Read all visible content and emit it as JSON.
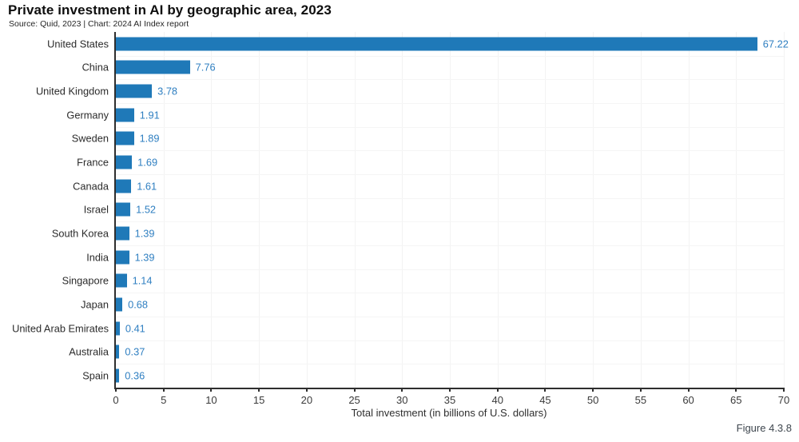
{
  "chart_data": {
    "type": "bar",
    "orientation": "horizontal",
    "title": "Private investment in AI by geographic area, 2023",
    "source": "Source: Quid, 2023 | Chart: 2024 AI Index report",
    "categories": [
      "United States",
      "China",
      "United Kingdom",
      "Germany",
      "Sweden",
      "France",
      "Canada",
      "Israel",
      "South Korea",
      "India",
      "Singapore",
      "Japan",
      "United Arab Emirates",
      "Australia",
      "Spain"
    ],
    "values": [
      67.22,
      7.76,
      3.78,
      1.91,
      1.89,
      1.69,
      1.61,
      1.52,
      1.39,
      1.39,
      1.14,
      0.68,
      0.41,
      0.37,
      0.36
    ],
    "value_labels": [
      "67.22",
      "7.76",
      "3.78",
      "1.91",
      "1.89",
      "1.69",
      "1.61",
      "1.52",
      "1.39",
      "1.39",
      "1.14",
      "0.68",
      "0.41",
      "0.37",
      "0.36"
    ],
    "xlabel": "Total investment (in billions of U.S. dollars)",
    "xlim": [
      0,
      70
    ],
    "xticks": [
      0,
      5,
      10,
      15,
      20,
      25,
      30,
      35,
      40,
      45,
      50,
      55,
      60,
      65,
      70
    ],
    "grid": true,
    "legend": "none",
    "figure_label": "Figure 4.3.8",
    "bar_color": "#1f79b8",
    "value_label_color": "#2f7fc1"
  }
}
